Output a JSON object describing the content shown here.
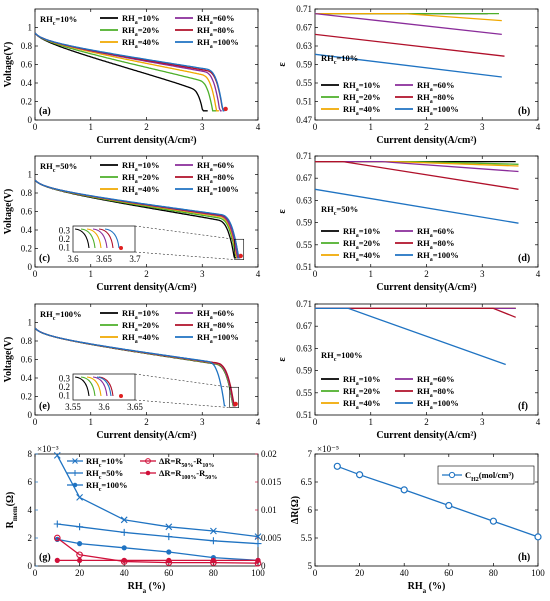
{
  "colors": {
    "rh10": "#000000",
    "rh20": "#4daf2a",
    "rh40": "#f0a800",
    "rh60": "#8a2c9a",
    "rh80": "#b0102a",
    "rh100": "#1f73c2",
    "left_axis": "#1f73c2",
    "right_axis": "#d0103a"
  },
  "chart_data": [
    {
      "id": "a",
      "type": "line",
      "panel_label": "(a)",
      "annotation": "RH_c=10%",
      "xlabel": "Current density(A/cm²)",
      "ylabel": "Voltage(V)",
      "xlim": [
        0,
        4
      ],
      "ylim": [
        0,
        1.2
      ],
      "xticks": [
        "0",
        "1",
        "2",
        "3",
        "4"
      ],
      "yticks": [
        "0",
        "0.2",
        "0.4",
        "0.6",
        "0.8",
        "1"
      ],
      "series": [
        {
          "name": "RH_a=10%",
          "color_key": "rh10",
          "params": [
            0.94,
            0.06,
            0.15,
            0.6,
            3.1
          ]
        },
        {
          "name": "RH_a=20%",
          "color_key": "rh20",
          "params": [
            0.94,
            0.06,
            0.12,
            0.3,
            3.25
          ]
        },
        {
          "name": "RH_a=40%",
          "color_key": "rh40",
          "params": [
            0.94,
            0.06,
            0.1,
            0.2,
            3.3
          ]
        },
        {
          "name": "RH_a=60%",
          "color_key": "rh60",
          "params": [
            0.94,
            0.06,
            0.09,
            0.1,
            3.35
          ]
        },
        {
          "name": "RH_a=80%",
          "color_key": "rh80",
          "params": [
            0.94,
            0.06,
            0.085,
            0.1,
            3.4
          ]
        },
        {
          "name": "RH_a=100%",
          "color_key": "rh100",
          "params": [
            0.94,
            0.06,
            0.08,
            0.1,
            3.4
          ]
        }
      ],
      "marker": {
        "x": 3.42,
        "y": 0.12
      }
    },
    {
      "id": "b",
      "type": "line",
      "panel_label": "(b)",
      "annotation": "RH_c=10%",
      "xlabel": "Current density(A/cm²)",
      "ylabel": "ε",
      "xlim": [
        0,
        4
      ],
      "ylim": [
        0.47,
        0.71
      ],
      "xticks": [
        "0",
        "1",
        "2",
        "3",
        "4"
      ],
      "yticks": [
        "0.47",
        "0.51",
        "0.55",
        "0.59",
        "0.63",
        "0.67",
        "0.71"
      ],
      "series": [
        {
          "name": "RH_a=10%",
          "color_key": "rh10",
          "points": [
            [
              0,
              0.7
            ],
            [
              3.1,
              0.7
            ]
          ]
        },
        {
          "name": "RH_a=20%",
          "color_key": "rh20",
          "points": [
            [
              0,
              0.7
            ],
            [
              3.3,
              0.7
            ]
          ]
        },
        {
          "name": "RH_a=40%",
          "color_key": "rh40",
          "points": [
            [
              0,
              0.7
            ],
            [
              1.6,
              0.7
            ],
            [
              3.35,
              0.685
            ]
          ]
        },
        {
          "name": "RH_a=60%",
          "color_key": "rh60",
          "points": [
            [
              0,
              0.7
            ],
            [
              3.35,
              0.655
            ]
          ]
        },
        {
          "name": "RH_a=80%",
          "color_key": "rh80",
          "points": [
            [
              0,
              0.655
            ],
            [
              3.4,
              0.608
            ]
          ]
        },
        {
          "name": "RH_a=100%",
          "color_key": "rh100",
          "points": [
            [
              0,
              0.612
            ],
            [
              3.35,
              0.563
            ]
          ]
        }
      ]
    },
    {
      "id": "c",
      "type": "line",
      "panel_label": "(c)",
      "annotation": "RH_c=50%",
      "xlabel": "Current density(A/cm²)",
      "ylabel": "Voltage(V)",
      "xlim": [
        0,
        4
      ],
      "ylim": [
        0,
        1.2
      ],
      "xticks": [
        "0",
        "1",
        "2",
        "3",
        "4"
      ],
      "yticks": [
        "0",
        "0.2",
        "0.4",
        "0.6",
        "0.8",
        "1"
      ],
      "inset_xticks": [
        "3.6",
        "3.65",
        "3.7"
      ],
      "inset_yticks": [
        "0.1",
        "0.2",
        "0.3"
      ],
      "series": [
        {
          "name": "RH_a=10%",
          "color_key": "rh10",
          "params": [
            0.94,
            0.06,
            0.085,
            0.2,
            3.62
          ]
        },
        {
          "name": "RH_a=20%",
          "color_key": "rh20",
          "params": [
            0.94,
            0.06,
            0.08,
            0.1,
            3.64
          ]
        },
        {
          "name": "RH_a=40%",
          "color_key": "rh40",
          "params": [
            0.94,
            0.06,
            0.075,
            0.1,
            3.65
          ]
        },
        {
          "name": "RH_a=60%",
          "color_key": "rh60",
          "params": [
            0.94,
            0.06,
            0.072,
            0.1,
            3.66
          ]
        },
        {
          "name": "RH_a=80%",
          "color_key": "rh80",
          "params": [
            0.94,
            0.06,
            0.07,
            0.1,
            3.68
          ]
        },
        {
          "name": "RH_a=100%",
          "color_key": "rh100",
          "params": [
            0.94,
            0.06,
            0.068,
            0.1,
            3.68
          ]
        }
      ],
      "marker": {
        "x": 3.69,
        "y": 0.12
      }
    },
    {
      "id": "d",
      "type": "line",
      "panel_label": "(d)",
      "annotation": "RH_c=50%",
      "xlabel": "Current density(A/cm²)",
      "ylabel": "ε",
      "xlim": [
        0,
        4
      ],
      "ylim": [
        0.51,
        0.71
      ],
      "xticks": [
        "0",
        "1",
        "2",
        "3",
        "4"
      ],
      "yticks": [
        "0.51",
        "0.55",
        "0.59",
        "0.63",
        "0.67",
        "0.71"
      ],
      "series": [
        {
          "name": "RH_a=10%",
          "color_key": "rh10",
          "points": [
            [
              0,
              0.7
            ],
            [
              3.6,
              0.7
            ]
          ]
        },
        {
          "name": "RH_a=20%",
          "color_key": "rh20",
          "points": [
            [
              0,
              0.7
            ],
            [
              1.8,
              0.7
            ],
            [
              3.65,
              0.695
            ]
          ]
        },
        {
          "name": "RH_a=40%",
          "color_key": "rh40",
          "points": [
            [
              0,
              0.7
            ],
            [
              1.4,
              0.7
            ],
            [
              3.65,
              0.692
            ]
          ]
        },
        {
          "name": "RH_a=60%",
          "color_key": "rh60",
          "points": [
            [
              0,
              0.7
            ],
            [
              1.2,
              0.7
            ],
            [
              3.65,
              0.682
            ]
          ]
        },
        {
          "name": "RH_a=80%",
          "color_key": "rh80",
          "points": [
            [
              0,
              0.7
            ],
            [
              0.5,
              0.7
            ],
            [
              3.65,
              0.65
            ]
          ]
        },
        {
          "name": "RH_a=100%",
          "color_key": "rh100",
          "points": [
            [
              0,
              0.65
            ],
            [
              3.65,
              0.589
            ]
          ]
        }
      ]
    },
    {
      "id": "e",
      "type": "line",
      "panel_label": "(e)",
      "annotation": "RH_c=100%",
      "xlabel": "Current density(A/cm²)",
      "ylabel": "Voltage(V)",
      "xlim": [
        0,
        4
      ],
      "ylim": [
        0,
        1.2
      ],
      "xticks": [
        "0",
        "1",
        "2",
        "3",
        "4"
      ],
      "yticks": [
        "0",
        "0.2",
        "0.4",
        "0.6",
        "0.8",
        "1"
      ],
      "inset_xticks": [
        "3.55",
        "3.6",
        "3.65"
      ],
      "inset_yticks": [
        "0.1",
        "0.2",
        "0.3"
      ],
      "series": [
        {
          "name": "RH_a=10%",
          "color_key": "rh10",
          "params": [
            0.94,
            0.06,
            0.075,
            0.1,
            3.58
          ]
        },
        {
          "name": "RH_a=20%",
          "color_key": "rh20",
          "params": [
            0.94,
            0.06,
            0.074,
            0.1,
            3.58
          ]
        },
        {
          "name": "RH_a=40%",
          "color_key": "rh40",
          "params": [
            0.94,
            0.06,
            0.073,
            0.1,
            3.59
          ]
        },
        {
          "name": "RH_a=60%",
          "color_key": "rh60",
          "params": [
            0.94,
            0.06,
            0.072,
            0.1,
            3.59
          ]
        },
        {
          "name": "RH_a=80%",
          "color_key": "rh80",
          "params": [
            0.94,
            0.06,
            0.071,
            0.1,
            3.6
          ]
        },
        {
          "name": "RH_a=100%",
          "color_key": "rh100",
          "params": [
            0.94,
            0.06,
            0.07,
            0.1,
            3.42
          ]
        }
      ],
      "marker": {
        "x": 3.6,
        "y": 0.12
      }
    },
    {
      "id": "f",
      "type": "line",
      "panel_label": "(f)",
      "annotation": "RH_c=100%",
      "xlabel": "Current density(A/cm²)",
      "ylabel": "ε",
      "xlim": [
        0,
        4
      ],
      "ylim": [
        0.51,
        0.71
      ],
      "xticks": [
        "0",
        "1",
        "2",
        "3",
        "4"
      ],
      "yticks": [
        "0.51",
        "0.55",
        "0.59",
        "0.63",
        "0.67",
        "0.71"
      ],
      "series": [
        {
          "name": "RH_a=10%",
          "color_key": "rh10",
          "points": [
            [
              0,
              0.702
            ],
            [
              3.6,
              0.702
            ]
          ]
        },
        {
          "name": "RH_a=20%",
          "color_key": "rh20",
          "points": [
            [
              0,
              0.702
            ],
            [
              3.6,
              0.702
            ]
          ]
        },
        {
          "name": "RH_a=40%",
          "color_key": "rh40",
          "points": [
            [
              0,
              0.702
            ],
            [
              3.6,
              0.702
            ]
          ]
        },
        {
          "name": "RH_a=60%",
          "color_key": "rh60",
          "points": [
            [
              0,
              0.702
            ],
            [
              3.6,
              0.702
            ]
          ]
        },
        {
          "name": "RH_a=80%",
          "color_key": "rh80",
          "points": [
            [
              0,
              0.702
            ],
            [
              3.2,
              0.702
            ],
            [
              3.6,
              0.686
            ]
          ]
        },
        {
          "name": "RH_a=100%",
          "color_key": "rh100",
          "points": [
            [
              0,
              0.702
            ],
            [
              0.6,
              0.702
            ],
            [
              3.42,
              0.601
            ]
          ]
        }
      ]
    },
    {
      "id": "g",
      "type": "line",
      "panel_label": "(g)",
      "xlabel": "RH_a (%)",
      "ylabel": "R_mem(Ω)",
      "ylabel_right": "ΔR(Ω)",
      "exponent_label": "×10⁻³",
      "xlim": [
        0,
        100
      ],
      "ylim": [
        0,
        8
      ],
      "ylim_right": [
        0,
        0.02
      ],
      "xticks": [
        "0",
        "20",
        "40",
        "60",
        "80",
        "100"
      ],
      "yticks": [
        "0",
        "2",
        "4",
        "6",
        "8"
      ],
      "yticks_right": [
        "0",
        "0.005",
        "0.01",
        "0.015",
        "0.02"
      ],
      "x": [
        10,
        20,
        40,
        60,
        80,
        100
      ],
      "series": [
        {
          "name": "RH_c=10%",
          "axis": "left",
          "marker": "x",
          "color_key": "rh100",
          "values": [
            7.9,
            4.9,
            3.3,
            2.8,
            2.5,
            2.1
          ]
        },
        {
          "name": "RH_c=50%",
          "axis": "left",
          "marker": "+",
          "color_key": "rh100",
          "values": [
            3.0,
            2.8,
            2.4,
            2.1,
            1.8,
            1.6
          ]
        },
        {
          "name": "RH_c=100%",
          "axis": "left",
          "marker": "dot",
          "color_key": "rh100",
          "values": [
            1.9,
            1.6,
            1.3,
            1.0,
            0.6,
            0.4
          ]
        },
        {
          "name": "ΔR=R_50%-R_10%",
          "axis": "right",
          "marker": "circle",
          "color_key": "right_axis",
          "values": [
            0.005,
            0.002,
            0.0008,
            0.0006,
            0.0006,
            0.0005
          ]
        },
        {
          "name": "ΔR=R_100%-R_50%",
          "axis": "right",
          "marker": "dot",
          "color_key": "right_axis",
          "values": [
            0.001,
            0.001,
            0.001,
            0.001,
            0.001,
            0.001
          ]
        }
      ]
    },
    {
      "id": "h",
      "type": "line",
      "panel_label": "(h)",
      "xlabel": "RH_a (%)",
      "ylabel": "",
      "exponent_label": "×10⁻⁵",
      "xlim": [
        0,
        100
      ],
      "ylim": [
        5,
        7
      ],
      "xticks": [
        "0",
        "20",
        "40",
        "60",
        "80",
        "100"
      ],
      "yticks": [
        "5",
        "5.5",
        "6",
        "6.5",
        "7"
      ],
      "x": [
        10,
        20,
        40,
        60,
        80,
        100
      ],
      "series": [
        {
          "name": "C_H2(mol/cm³)",
          "marker": "circle",
          "color_key": "rh100",
          "values": [
            6.78,
            6.63,
            6.36,
            6.08,
            5.8,
            5.52
          ]
        }
      ]
    }
  ]
}
